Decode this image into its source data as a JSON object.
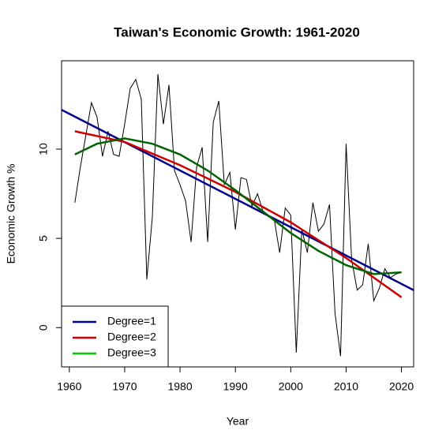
{
  "chart_data": {
    "type": "line",
    "title": "Taiwan's Economic Growth: 1961-2020",
    "xlabel": "Year",
    "ylabel": "Economic Growth %",
    "xlim": [
      1958.6,
      2022.2
    ],
    "ylim": [
      -2.2,
      14.95
    ],
    "xticks": [
      1960,
      1970,
      1980,
      1990,
      2000,
      2010,
      2020
    ],
    "yticks": [
      0,
      5,
      10
    ],
    "color": "#000000",
    "x": [
      1961,
      1962,
      1963,
      1964,
      1965,
      1966,
      1967,
      1968,
      1969,
      1970,
      1971,
      1972,
      1973,
      1974,
      1975,
      1976,
      1977,
      1978,
      1979,
      1980,
      1981,
      1982,
      1983,
      1984,
      1985,
      1986,
      1987,
      1988,
      1989,
      1990,
      1991,
      1992,
      1993,
      1994,
      1995,
      1996,
      1997,
      1998,
      1999,
      2000,
      2001,
      2002,
      2003,
      2004,
      2005,
      2006,
      2007,
      2008,
      2009,
      2010,
      2011,
      2012,
      2013,
      2014,
      2015,
      2016,
      2017,
      2018,
      2019,
      2020
    ],
    "values": [
      7.0,
      9.0,
      10.8,
      12.6,
      11.8,
      9.6,
      11.0,
      9.7,
      9.6,
      11.4,
      13.4,
      13.9,
      12.8,
      2.7,
      6.2,
      14.2,
      11.4,
      13.6,
      8.8,
      8.0,
      7.1,
      4.8,
      9.0,
      10.1,
      4.8,
      11.5,
      12.7,
      8.0,
      8.7,
      5.5,
      8.4,
      8.3,
      6.8,
      7.5,
      6.5,
      6.2,
      6.1,
      4.2,
      6.7,
      6.3,
      -1.4,
      5.5,
      4.2,
      7.0,
      5.4,
      5.8,
      6.9,
      0.8,
      -1.6,
      10.3,
      3.8,
      2.1,
      2.4,
      4.7,
      1.5,
      2.2,
      3.3,
      2.8,
      3.0,
      3.1
    ],
    "series": [
      {
        "name": "Degree=1",
        "color": "#00008b",
        "x": [
          1958.6,
          2022.2
        ],
        "values": [
          12.2,
          2.1
        ]
      },
      {
        "name": "Degree=2",
        "color": "#cd0000",
        "x": [
          1961,
          1970,
          1980,
          1990,
          2000,
          2010,
          2020
        ],
        "values": [
          11.0,
          10.4,
          9.1,
          7.6,
          5.9,
          3.9,
          1.7
        ]
      },
      {
        "name": "Degree=3",
        "color": "#006400",
        "legend_color": "#00cd00",
        "x": [
          1961,
          1965,
          1970,
          1975,
          1980,
          1985,
          1990,
          1995,
          2000,
          2005,
          2010,
          2015,
          2020
        ],
        "values": [
          9.7,
          10.3,
          10.6,
          10.3,
          9.7,
          8.8,
          7.7,
          6.5,
          5.3,
          4.3,
          3.5,
          3.0,
          3.1
        ]
      }
    ],
    "legend": "bottom-left"
  }
}
